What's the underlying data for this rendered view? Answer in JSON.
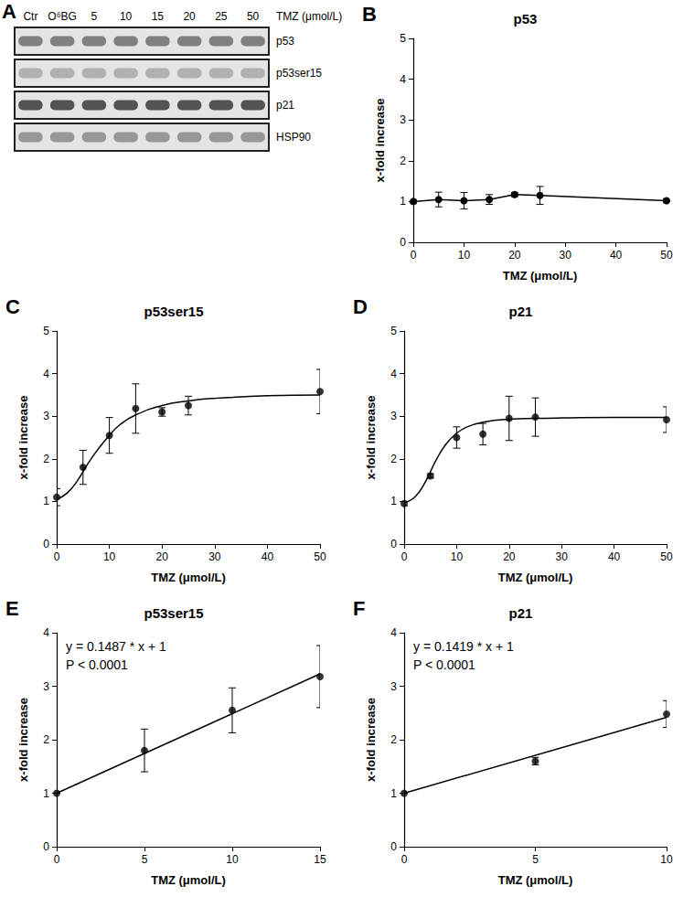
{
  "blot": {
    "panel": "A",
    "lanes": [
      "Ctr",
      "O⁶BG",
      "5",
      "10",
      "15",
      "20",
      "25",
      "50"
    ],
    "lane_axis_label": "TMZ (μmol/L)",
    "rows": [
      "p53",
      "p53ser15",
      "p21",
      "HSP90"
    ]
  },
  "chart_data": [
    {
      "panel": "B",
      "type": "line",
      "title": "p53",
      "x_label": "TMZ (μmol/L)",
      "y_label": "x-fold increase",
      "x": [
        0,
        5,
        10,
        15,
        20,
        25,
        50
      ],
      "values": [
        1.0,
        1.05,
        1.02,
        1.05,
        1.17,
        1.15,
        1.02
      ],
      "errors": [
        0.05,
        0.18,
        0.2,
        0.12,
        0.05,
        0.22,
        0.05
      ],
      "color": "#000000",
      "marker": "circle",
      "xlim": [
        0,
        50
      ],
      "xticks": [
        0,
        10,
        20,
        30,
        40,
        50
      ],
      "ylim": [
        0,
        5
      ],
      "yticks": [
        0,
        1,
        2,
        3,
        4,
        5
      ],
      "grid": false
    },
    {
      "panel": "C",
      "type": "scatter",
      "title": "p53ser15",
      "x_label": "TMZ (μmol/L)",
      "y_label": "x-fold increase",
      "x": [
        0,
        5,
        10,
        15,
        20,
        25,
        50
      ],
      "values": [
        1.1,
        1.8,
        2.55,
        3.18,
        3.1,
        3.25,
        3.58
      ],
      "errors": [
        0.2,
        0.4,
        0.42,
        0.58,
        0.1,
        0.22,
        0.52
      ],
      "fit": {
        "x": [
          0,
          2,
          4,
          6,
          8,
          10,
          12,
          15,
          20,
          25,
          30,
          40,
          50
        ],
        "values": [
          1.05,
          1.2,
          1.5,
          1.9,
          2.25,
          2.55,
          2.8,
          3.03,
          3.25,
          3.36,
          3.42,
          3.48,
          3.5
        ]
      },
      "color": "#000000",
      "marker": "circle",
      "xlim": [
        0,
        50
      ],
      "xticks": [
        0,
        10,
        20,
        30,
        40,
        50
      ],
      "ylim": [
        0,
        5
      ],
      "yticks": [
        0,
        1,
        2,
        3,
        4,
        5
      ],
      "grid": false
    },
    {
      "panel": "D",
      "type": "scatter",
      "title": "p21",
      "x_label": "TMZ (μmol/L)",
      "y_label": "x-fold increase",
      "x": [
        0,
        5,
        10,
        15,
        20,
        25,
        50
      ],
      "values": [
        0.95,
        1.6,
        2.5,
        2.58,
        2.95,
        2.98,
        2.92
      ],
      "errors": [
        0.05,
        0.05,
        0.25,
        0.25,
        0.52,
        0.45,
        0.3
      ],
      "fit": {
        "x": [
          0,
          2,
          4,
          6,
          8,
          10,
          12,
          15,
          20,
          25,
          30,
          40,
          50
        ],
        "values": [
          0.97,
          1.1,
          1.45,
          1.95,
          2.35,
          2.6,
          2.75,
          2.86,
          2.93,
          2.95,
          2.96,
          2.97,
          2.97
        ]
      },
      "color": "#000000",
      "marker": "circle",
      "xlim": [
        0,
        50
      ],
      "xticks": [
        0,
        10,
        20,
        30,
        40,
        50
      ],
      "ylim": [
        0,
        5
      ],
      "yticks": [
        0,
        1,
        2,
        3,
        4,
        5
      ],
      "grid": false
    },
    {
      "panel": "E",
      "type": "scatter",
      "title": "p53ser15",
      "x_label": "TMZ (μmol/L)",
      "y_label": "x-fold increase",
      "annotations": [
        "y = 0.1487 * x + 1",
        "P < 0.0001"
      ],
      "x": [
        0,
        5,
        10,
        15
      ],
      "values": [
        1.0,
        1.8,
        2.55,
        3.18
      ],
      "errors": [
        0,
        0.4,
        0.42,
        0.58
      ],
      "fit": {
        "x": [
          0,
          15
        ],
        "values": [
          1,
          3.2305
        ]
      },
      "color": "#000000",
      "marker": "circle",
      "xlim": [
        0,
        15
      ],
      "xticks": [
        0,
        5,
        10,
        15
      ],
      "ylim": [
        0,
        4
      ],
      "yticks": [
        0,
        1,
        2,
        3,
        4
      ],
      "grid": false
    },
    {
      "panel": "F",
      "type": "scatter",
      "title": "p21",
      "x_label": "TMZ (μmol/L)",
      "y_label": "x-fold increase",
      "annotations": [
        "y = 0.1419 * x + 1",
        "P < 0.0001"
      ],
      "x": [
        0,
        5,
        10
      ],
      "values": [
        1.0,
        1.6,
        2.48
      ],
      "errors": [
        0,
        0.07,
        0.25
      ],
      "fit": {
        "x": [
          0,
          10
        ],
        "values": [
          1,
          2.419
        ]
      },
      "color": "#000000",
      "marker": "circle",
      "xlim": [
        0,
        10
      ],
      "xticks": [
        0,
        5,
        10
      ],
      "ylim": [
        0,
        4
      ],
      "yticks": [
        0,
        1,
        2,
        3,
        4
      ],
      "grid": false
    }
  ]
}
